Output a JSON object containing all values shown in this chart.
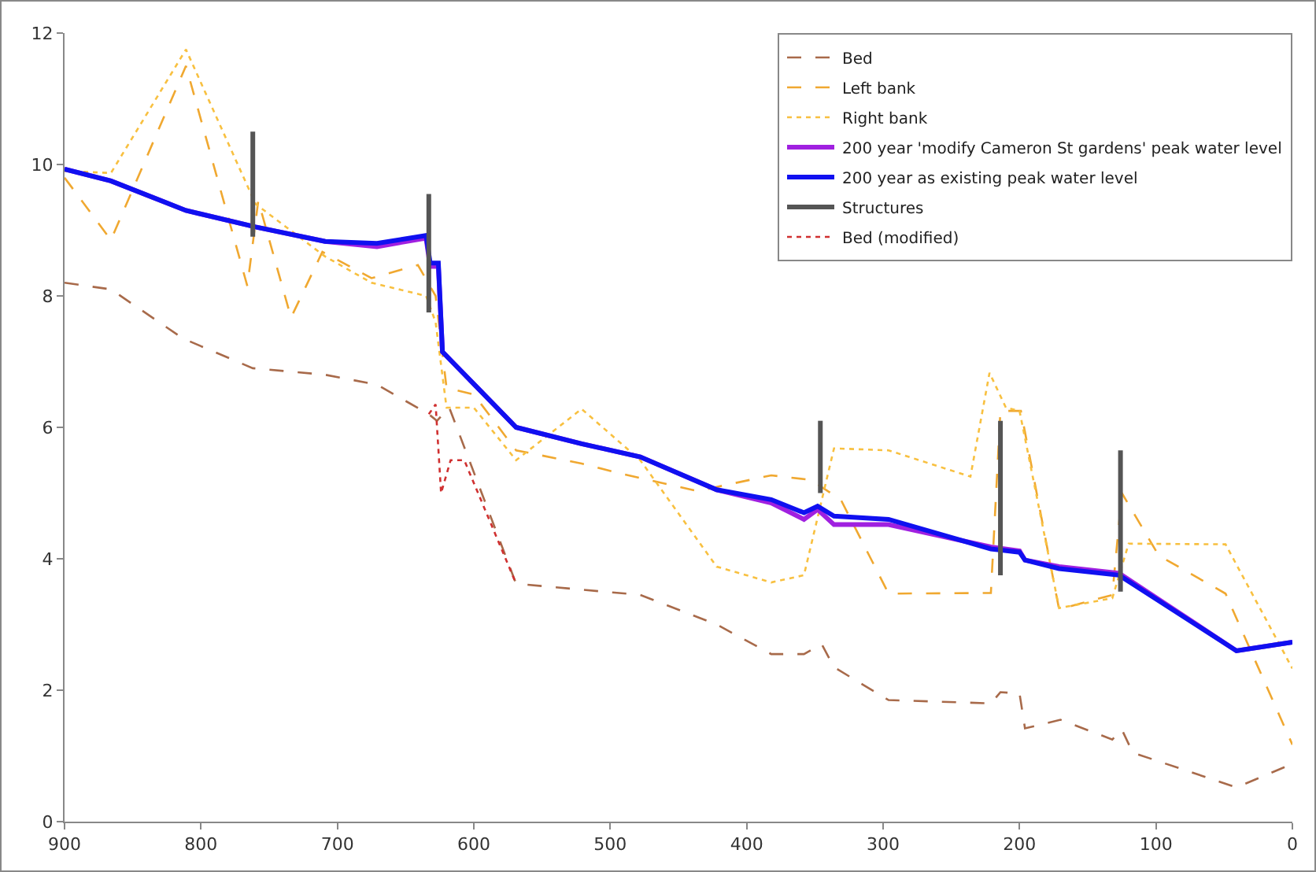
{
  "chart_data": {
    "type": "line",
    "xlim": [
      900,
      0
    ],
    "ylim": [
      0,
      12
    ],
    "xticks": [
      900,
      800,
      700,
      600,
      500,
      400,
      300,
      200,
      100,
      0
    ],
    "yticks": [
      0,
      2,
      4,
      6,
      8,
      10,
      12
    ],
    "grid": false,
    "legend": "top right",
    "marker": "none",
    "series": [
      {
        "name": "Bed",
        "color": "#a86a4a",
        "line_style": "dashed",
        "x": [
          900,
          866,
          813,
          762,
          709,
          671,
          633,
          627,
          618,
          569,
          478,
          422,
          382,
          358,
          345,
          336,
          296,
          221,
          214,
          200,
          196,
          170,
          132,
          125,
          117,
          41,
          0
        ],
        "values": [
          8.2,
          8.1,
          7.35,
          6.9,
          6.8,
          6.65,
          6.2,
          6.1,
          6.3,
          3.62,
          3.45,
          3.0,
          2.55,
          2.55,
          2.7,
          2.35,
          1.85,
          1.8,
          1.97,
          1.95,
          1.42,
          1.55,
          1.25,
          1.4,
          1.05,
          0.52,
          0.88
        ]
      },
      {
        "name": "Left bank",
        "color": "#f0a830",
        "line_style": "dashed",
        "x": [
          900,
          866,
          811,
          766,
          758,
          734,
          711,
          675,
          641,
          628,
          620,
          600,
          569,
          521,
          493,
          436,
          382,
          353,
          331,
          296,
          221,
          214,
          199,
          171,
          132,
          125,
          98,
          49,
          0
        ],
        "values": [
          9.8,
          8.85,
          11.5,
          8.15,
          9.45,
          7.67,
          8.67,
          8.27,
          8.47,
          8.0,
          6.6,
          6.5,
          5.65,
          5.45,
          5.3,
          5.03,
          5.27,
          5.2,
          4.9,
          3.47,
          3.48,
          6.25,
          6.25,
          3.23,
          3.45,
          5.0,
          4.05,
          3.47,
          1.17
        ]
      },
      {
        "name": "Right bank",
        "color": "#f8c040",
        "line_style": "dotted",
        "x": [
          900,
          866,
          811,
          760,
          709,
          675,
          635,
          628,
          620,
          600,
          569,
          521,
          478,
          422,
          382,
          358,
          336,
          296,
          236,
          222,
          210,
          200,
          171,
          132,
          120,
          49,
          0
        ],
        "values": [
          9.9,
          9.87,
          11.75,
          9.4,
          8.6,
          8.2,
          8.0,
          7.6,
          6.3,
          6.3,
          5.5,
          6.28,
          5.5,
          3.88,
          3.64,
          3.75,
          5.68,
          5.65,
          5.25,
          6.83,
          6.3,
          6.25,
          3.25,
          3.4,
          4.23,
          4.22,
          2.33
        ]
      },
      {
        "name": "200 year 'modify Cameron St gardens' peak water level",
        "color": "#a020e0",
        "line_style": "solid",
        "x": [
          900,
          866,
          811,
          760,
          709,
          671,
          635,
          632,
          626,
          623,
          616,
          569,
          521,
          478,
          422,
          382,
          358,
          348,
          336,
          296,
          221,
          200,
          196,
          171,
          127,
          41,
          0
        ],
        "values": [
          9.93,
          9.75,
          9.3,
          9.05,
          8.83,
          8.75,
          8.88,
          8.45,
          8.45,
          7.15,
          7.0,
          6.0,
          5.75,
          5.55,
          5.05,
          4.85,
          4.6,
          4.75,
          4.52,
          4.52,
          4.18,
          4.12,
          3.98,
          3.88,
          3.78,
          2.6,
          2.73
        ]
      },
      {
        "name": "200 year as existing peak water level",
        "color": "#1010f0",
        "line_style": "solid",
        "x": [
          900,
          866,
          811,
          760,
          709,
          671,
          635,
          632,
          626,
          623,
          616,
          569,
          521,
          478,
          422,
          382,
          358,
          348,
          336,
          296,
          221,
          200,
          196,
          171,
          127,
          41,
          0
        ],
        "values": [
          9.93,
          9.75,
          9.3,
          9.05,
          8.83,
          8.8,
          8.92,
          8.5,
          8.5,
          7.15,
          7.0,
          6.0,
          5.75,
          5.55,
          5.05,
          4.9,
          4.7,
          4.8,
          4.65,
          4.6,
          4.15,
          4.1,
          3.98,
          3.85,
          3.75,
          2.6,
          2.73
        ]
      },
      {
        "name": "Structures",
        "color": "#555555",
        "line_style": "solid",
        "x": [
          762,
          762,
          null,
          633,
          633,
          null,
          346,
          346,
          null,
          214,
          214,
          null,
          126,
          126
        ],
        "values": [
          10.5,
          8.9,
          null,
          9.55,
          7.75,
          null,
          6.1,
          5.0,
          null,
          6.1,
          3.75,
          null,
          5.65,
          3.5
        ]
      },
      {
        "name": "Bed (modified)",
        "color": "#d03030",
        "line_style": "dotted",
        "x": [
          633,
          628,
          624,
          617,
          607,
          569
        ],
        "values": [
          6.2,
          6.35,
          5.0,
          5.5,
          5.5,
          3.62
        ]
      }
    ]
  }
}
